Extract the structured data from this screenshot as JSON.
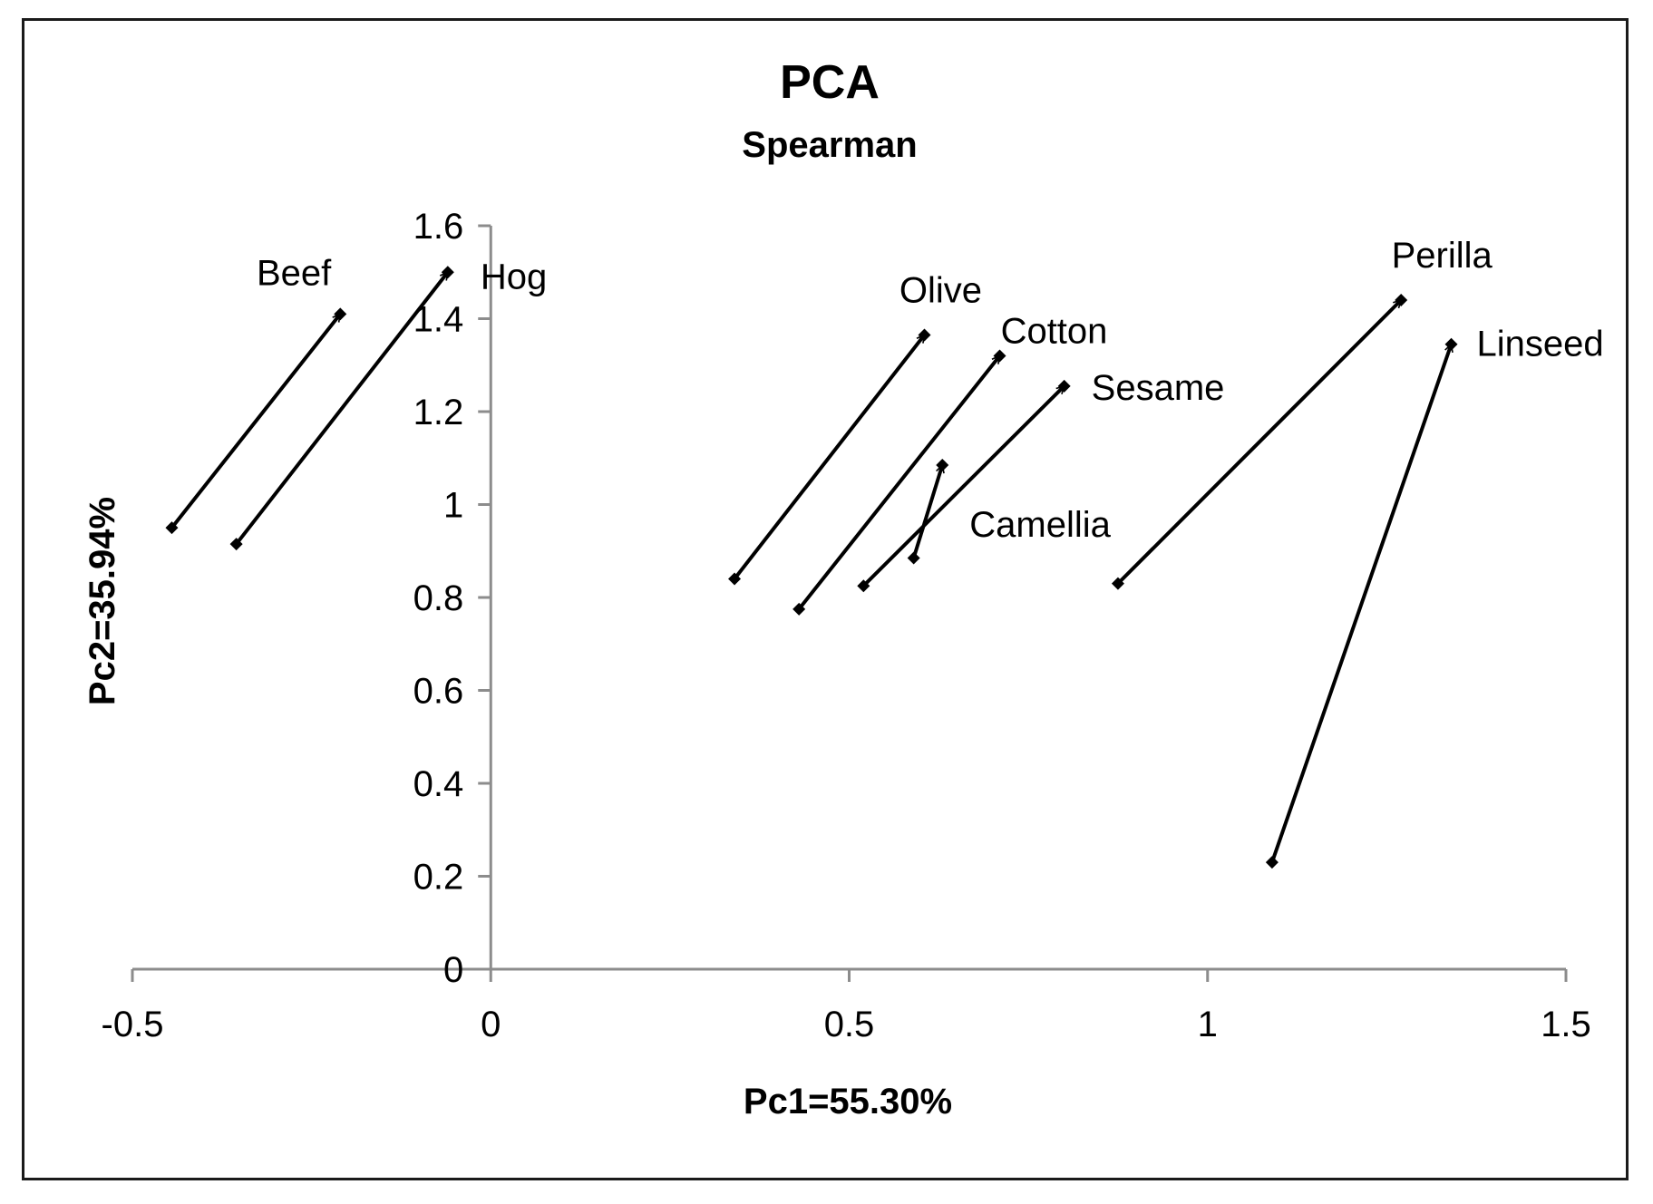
{
  "chart_data": {
    "type": "scatter",
    "title": "PCA",
    "subtitle": "Spearman",
    "xlabel": "Pc1=55.30%",
    "ylabel": "Pc2=35.94%",
    "xlim": [
      -0.5,
      1.5
    ],
    "ylim": [
      0,
      1.6
    ],
    "x_ticks": [
      -0.5,
      0,
      0.5,
      1,
      1.5
    ],
    "x_tick_labels": [
      "-0.5",
      "0",
      "0.5",
      "1",
      "1.5"
    ],
    "y_ticks": [
      0,
      0.2,
      0.4,
      0.6,
      0.8,
      1,
      1.2,
      1.4,
      1.6
    ],
    "y_tick_labels": [
      "0",
      "0.2",
      "0.4",
      "0.6",
      "0.8",
      "1",
      "1.2",
      "1.4",
      "1.6"
    ],
    "grid": false,
    "series": [
      {
        "name": "Beef",
        "start": [
          -0.445,
          0.95
        ],
        "end": [
          -0.21,
          1.41
        ]
      },
      {
        "name": "Hog",
        "start": [
          -0.355,
          0.915
        ],
        "end": [
          -0.06,
          1.5
        ]
      },
      {
        "name": "Olive",
        "start": [
          0.34,
          0.84
        ],
        "end": [
          0.605,
          1.365
        ]
      },
      {
        "name": "Cotton",
        "start": [
          0.43,
          0.775
        ],
        "end": [
          0.71,
          1.32
        ]
      },
      {
        "name": "Sesame",
        "start": [
          0.52,
          0.825
        ],
        "end": [
          0.8,
          1.255
        ]
      },
      {
        "name": "Camellia",
        "start": [
          0.59,
          0.885
        ],
        "end": [
          0.63,
          1.085
        ]
      },
      {
        "name": "Perilla",
        "start": [
          0.875,
          0.83
        ],
        "end": [
          1.27,
          1.44
        ]
      },
      {
        "name": "Linseed",
        "start": [
          1.09,
          0.23
        ],
        "end": [
          1.34,
          1.345
        ]
      }
    ]
  }
}
